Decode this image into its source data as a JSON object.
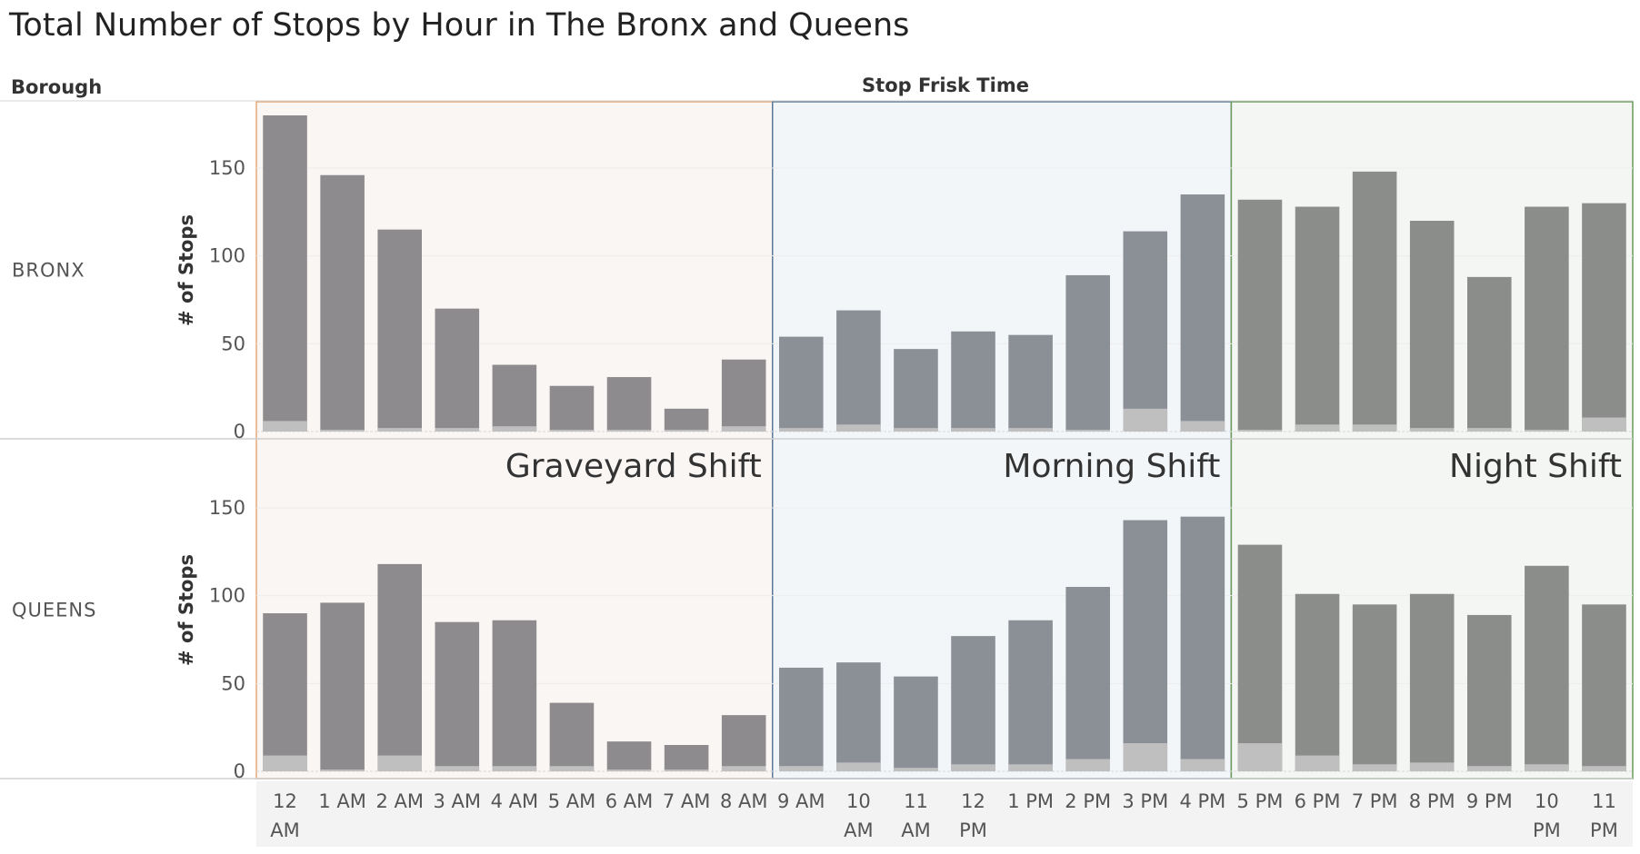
{
  "title": "Total Number of Stops by Hour in The Bronx and Queens",
  "row_header": "Borough",
  "column_header": "Stop Frisk Time",
  "y_axis_label": "# of Stops",
  "colors": {
    "graveyard_bg": "#f9f6f4",
    "graveyard_border": "#e5a878",
    "morning_bg": "#f3f6f9",
    "morning_border": "#5c7896",
    "night_bg": "#f4f6f3",
    "night_border": "#6b9a5a",
    "bar_graveyard": "#8e8b8e",
    "bar_morning": "#8b8f96",
    "bar_night": "#8b8d8b",
    "bar_overlay": "#c4c4c4"
  },
  "chart_data": {
    "type": "bar",
    "categories": [
      "12 AM",
      "1 AM",
      "2 AM",
      "3 AM",
      "4 AM",
      "5 AM",
      "6 AM",
      "7 AM",
      "8 AM",
      "9 AM",
      "10 AM",
      "11 AM",
      "12 PM",
      "1 PM",
      "2 PM",
      "3 PM",
      "4 PM",
      "5 PM",
      "6 PM",
      "7 PM",
      "8 PM",
      "9 PM",
      "10 PM",
      "11 PM"
    ],
    "ylabel": "# of Stops",
    "ylim": [
      0,
      180
    ],
    "yticks": [
      0,
      50,
      100,
      150
    ],
    "shifts": [
      {
        "name": "Graveyard Shift",
        "start": 0,
        "end": 8,
        "key": "graveyard"
      },
      {
        "name": "Morning Shift",
        "start": 9,
        "end": 16,
        "key": "morning"
      },
      {
        "name": "Night Shift",
        "start": 17,
        "end": 23,
        "key": "night"
      }
    ],
    "series": [
      {
        "name": "BRONX",
        "values": [
          180,
          146,
          115,
          70,
          38,
          26,
          31,
          13,
          41,
          54,
          69,
          47,
          57,
          55,
          89,
          114,
          135,
          132,
          128,
          148,
          120,
          88,
          128,
          130
        ],
        "overlay": [
          6,
          1,
          2,
          2,
          3,
          1,
          1,
          1,
          3,
          2,
          4,
          2,
          2,
          2,
          1,
          13,
          6,
          1,
          4,
          4,
          2,
          2,
          1,
          8
        ]
      },
      {
        "name": "QUEENS",
        "values": [
          90,
          96,
          118,
          85,
          86,
          39,
          17,
          15,
          32,
          59,
          62,
          54,
          77,
          86,
          105,
          143,
          145,
          129,
          101,
          95,
          101,
          89,
          117,
          95
        ],
        "overlay": [
          9,
          1,
          9,
          3,
          3,
          3,
          1,
          1,
          3,
          3,
          5,
          2,
          4,
          4,
          7,
          16,
          7,
          16,
          9,
          4,
          5,
          3,
          4,
          3
        ]
      }
    ]
  }
}
